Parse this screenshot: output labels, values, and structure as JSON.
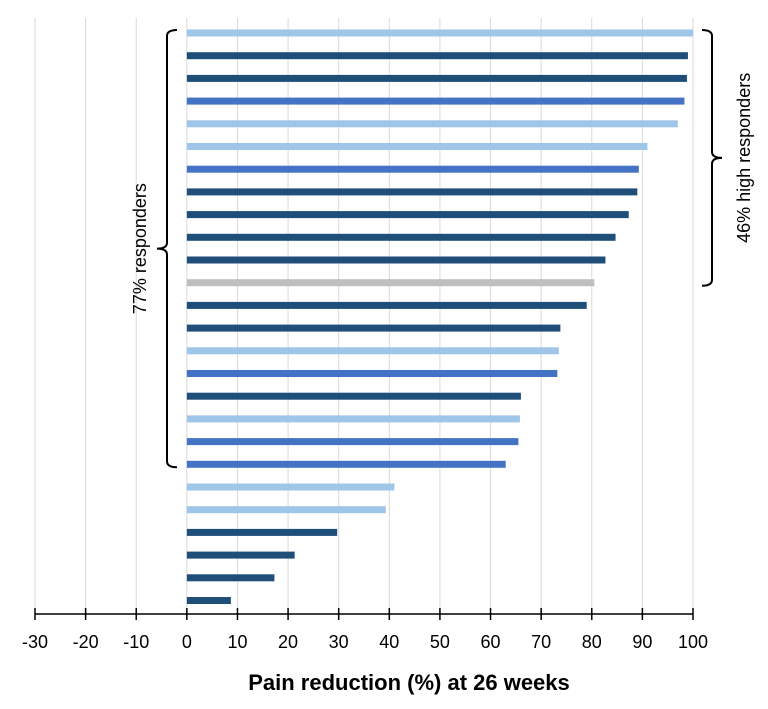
{
  "chart_data": {
    "type": "bar",
    "orientation": "horizontal",
    "xlabel": "Pain reduction (%) at 26 weeks",
    "ylabel": "",
    "xlim": [
      -30,
      100
    ],
    "xticks": [
      -30,
      -20,
      -10,
      0,
      10,
      20,
      30,
      40,
      50,
      60,
      70,
      80,
      90,
      100
    ],
    "grid": "vertical",
    "colors": {
      "light": "#9fc5e8",
      "dark": "#1f4e79",
      "medium": "#4472c4",
      "gray": "#bfbfbf"
    },
    "values": [
      100,
      99,
      98.8,
      98.3,
      97,
      91,
      89.3,
      89,
      87.3,
      84.7,
      82.7,
      80.5,
      79,
      73.8,
      73.5,
      73.2,
      66,
      65.8,
      65.5,
      63,
      41,
      39.3,
      29.7,
      21.3,
      17.3,
      8.7
    ],
    "bar_colors": [
      "light",
      "dark",
      "dark",
      "medium",
      "light",
      "light",
      "medium",
      "dark",
      "dark",
      "dark",
      "dark",
      "gray",
      "dark",
      "dark",
      "light",
      "medium",
      "dark",
      "light",
      "medium",
      "medium",
      "light",
      "light",
      "dark",
      "dark",
      "dark",
      "dark"
    ],
    "annotations": [
      {
        "label": "77% responders",
        "from_bar": 0,
        "to_bar": 19,
        "side": "left"
      },
      {
        "label": "46% high responders",
        "from_bar": 0,
        "to_bar": 11,
        "side": "right"
      }
    ]
  }
}
